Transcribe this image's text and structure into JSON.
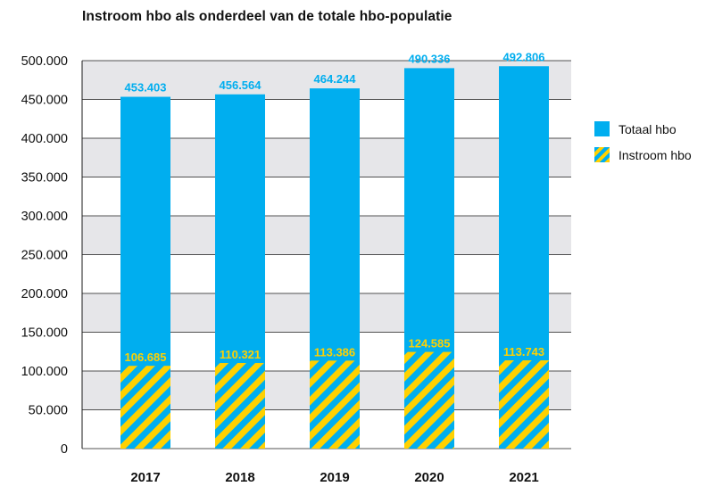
{
  "chart_data": {
    "type": "bar",
    "title": "Instroom hbo als onderdeel van de totale hbo-populatie",
    "categories": [
      "2017",
      "2018",
      "2019",
      "2020",
      "2021"
    ],
    "series": [
      {
        "name": "Totaal hbo",
        "values": [
          453403,
          456564,
          464244,
          490336,
          492806
        ],
        "labels": [
          "453.403",
          "456.564",
          "464.244",
          "490.336",
          "492.806"
        ],
        "color": "#00AEEF"
      },
      {
        "name": "Instroom hbo",
        "values": [
          106685,
          110321,
          113386,
          124585,
          113743
        ],
        "labels": [
          "106.685",
          "110.321",
          "113.386",
          "124.585",
          "113.743"
        ],
        "color": "#FFD100",
        "pattern": "hatched"
      }
    ],
    "ylim": [
      0,
      500000
    ],
    "yticks": [
      0,
      50000,
      100000,
      150000,
      200000,
      250000,
      300000,
      350000,
      400000,
      450000,
      500000
    ],
    "ytick_labels": [
      "0",
      "50.000",
      "100.000",
      "150.000",
      "200.000",
      "250.000",
      "300.000",
      "350.000",
      "400.000",
      "450.000",
      "500.000"
    ],
    "grid": true,
    "legend_position": "right"
  },
  "colors": {
    "band": "#E6E6E9",
    "total": "#00AEEF",
    "intake": "#FFD100",
    "total_label": "#00AEEF",
    "intake_label": "#FFD100"
  }
}
